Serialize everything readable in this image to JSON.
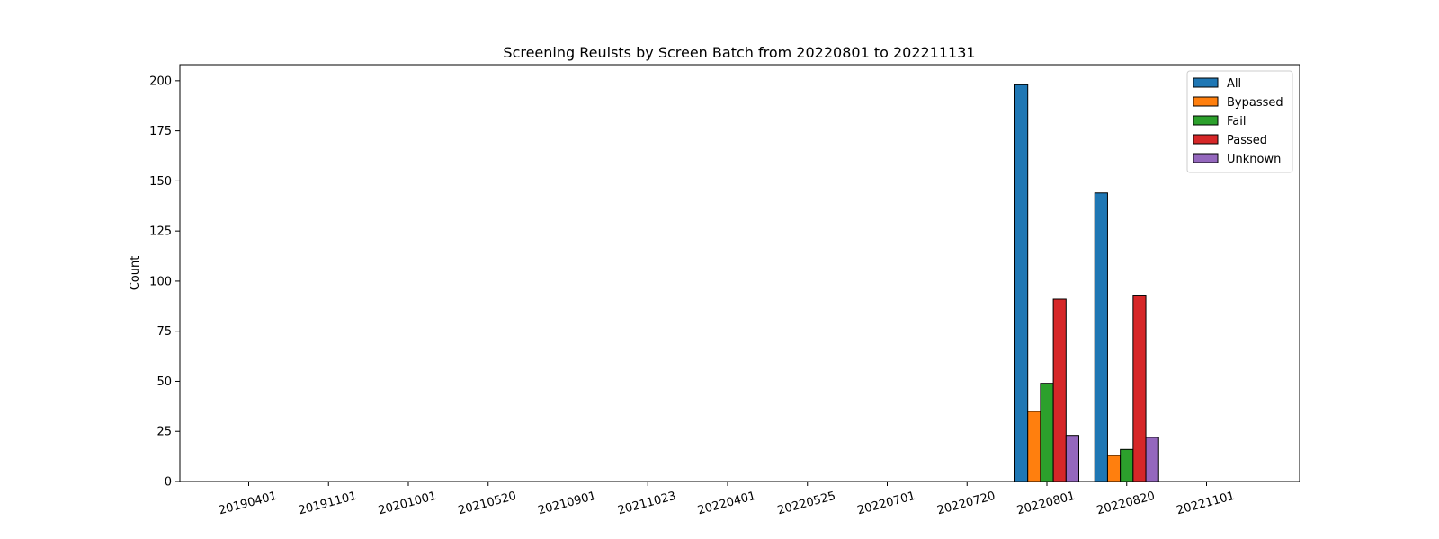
{
  "chart_data": {
    "type": "bar",
    "title": "Screening Reulsts by Screen Batch from 20220801 to 202211131",
    "xlabel": "",
    "ylabel": "Count",
    "ylim": [
      0,
      208
    ],
    "yticks": [
      0,
      25,
      50,
      75,
      100,
      125,
      150,
      175,
      200
    ],
    "grid": false,
    "legend_position": "top-right",
    "categories": [
      "20190401",
      "20191101",
      "20201001",
      "20210520",
      "20210901",
      "20211023",
      "20220401",
      "20220525",
      "20220701",
      "20220720",
      "20220801",
      "20220820",
      "20221101"
    ],
    "series": [
      {
        "name": "All",
        "color": "#1f77b4",
        "values": [
          0,
          0,
          0,
          0,
          0,
          0,
          0,
          0,
          0,
          0,
          198,
          144,
          0
        ]
      },
      {
        "name": "Bypassed",
        "color": "#ff7f0e",
        "values": [
          0,
          0,
          0,
          0,
          0,
          0,
          0,
          0,
          0,
          0,
          35,
          13,
          0
        ]
      },
      {
        "name": "Fail",
        "color": "#2ca02c",
        "values": [
          0,
          0,
          0,
          0,
          0,
          0,
          0,
          0,
          0,
          0,
          49,
          16,
          0
        ]
      },
      {
        "name": "Passed",
        "color": "#d62728",
        "values": [
          0,
          0,
          0,
          0,
          0,
          0,
          0,
          0,
          0,
          0,
          91,
          93,
          0
        ]
      },
      {
        "name": "Unknown",
        "color": "#9467bd",
        "values": [
          0,
          0,
          0,
          0,
          0,
          0,
          0,
          0,
          0,
          0,
          23,
          22,
          0
        ]
      }
    ]
  }
}
